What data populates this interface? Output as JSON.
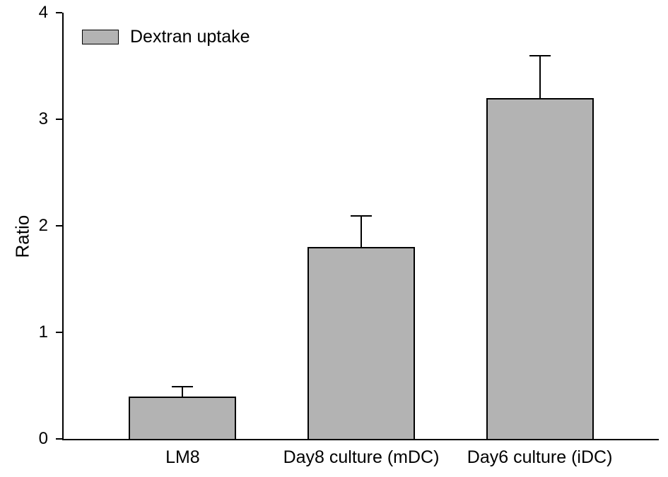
{
  "chart_data": {
    "type": "bar",
    "title": "",
    "legend": {
      "label": "Dextran uptake",
      "position": "top-left"
    },
    "categories": [
      "LM8",
      "Day8 culture (mDC)",
      "Day6 culture (iDC)"
    ],
    "values": [
      0.4,
      1.8,
      3.2
    ],
    "errors": [
      0.1,
      0.3,
      0.4
    ],
    "xlabel": "",
    "ylabel": "Ratio",
    "ylim": [
      0,
      4
    ],
    "yticks": [
      "0",
      "1",
      "2",
      "3",
      "4"
    ],
    "grid": false,
    "background_color": "#ffffff",
    "bar_fill_color": "#b3b3b3",
    "bar_border_color": "#000000",
    "axis_color": "#000000"
  }
}
